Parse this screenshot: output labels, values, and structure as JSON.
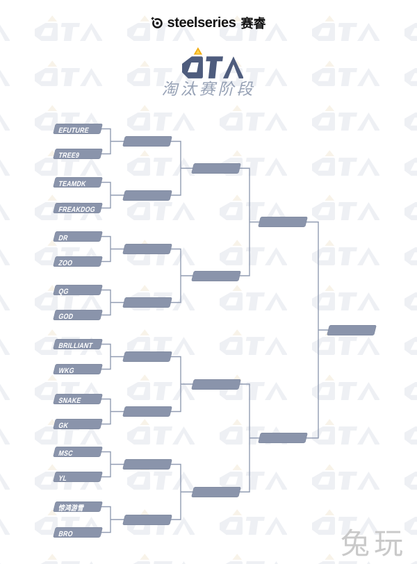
{
  "header": {
    "brand_icon": "steelseries-icon",
    "brand_name": "steelseries",
    "brand_cn": "赛睿",
    "logo_text": "OTA",
    "logo_icons": [
      "triangle-up-icon",
      "triangle-down-icon"
    ],
    "stage_title": "淘汰赛阶段"
  },
  "colors": {
    "logo_blue": "#4e5c7d",
    "accent_gold": "#f2ae16",
    "bracket_box": "#8a94ab",
    "bracket_line": "#919cb2",
    "subtitle_gray": "#96a1b5",
    "watermark_gray": "#eef0f4",
    "site_watermark_gray": "#c9c9c9"
  },
  "bracket": {
    "round1": [
      "EFUTURE",
      "TREE9",
      "TEAMDK",
      "FREAKDOG",
      "DR",
      "ZOO",
      "QG",
      "GOD",
      "BRILLIANT",
      "WKG",
      "SNAKE",
      "GK",
      "MSC",
      "YL",
      "惊鸿游雪",
      "BRO"
    ],
    "empty_slots": {
      "round2": 8,
      "round3": 4,
      "semifinal": 2,
      "final": 1
    }
  },
  "watermark": {
    "pattern_text": "OTA",
    "site_label": "兔玩"
  }
}
